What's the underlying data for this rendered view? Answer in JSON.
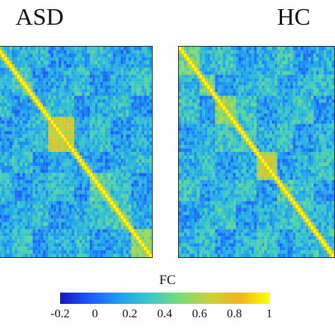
{
  "chart_data": [
    {
      "type": "heatmap",
      "title": "ASD",
      "matrix_size": 60,
      "value_range": [
        -0.2,
        1
      ],
      "diagonal_value": 1,
      "modules": [
        [
          0,
          6
        ],
        [
          6,
          14
        ],
        [
          14,
          20
        ],
        [
          20,
          30
        ],
        [
          30,
          36
        ],
        [
          36,
          44
        ],
        [
          44,
          52
        ],
        [
          52,
          60
        ]
      ],
      "module_means": [
        0.3,
        0.3,
        0.22,
        0.65,
        0.2,
        0.4,
        0.35,
        0.5
      ],
      "background_mean": 0.2
    },
    {
      "type": "heatmap",
      "title": "HC",
      "matrix_size": 60,
      "value_range": [
        -0.2,
        1
      ],
      "diagonal_value": 1,
      "modules": [
        [
          0,
          8
        ],
        [
          8,
          14
        ],
        [
          14,
          22
        ],
        [
          22,
          30
        ],
        [
          30,
          38
        ],
        [
          38,
          44
        ],
        [
          44,
          52
        ],
        [
          52,
          60
        ]
      ],
      "module_means": [
        0.45,
        0.4,
        0.5,
        0.3,
        0.6,
        0.35,
        0.3,
        0.3
      ],
      "background_mean": 0.22
    }
  ],
  "colorbar": {
    "label": "FC",
    "ticks": [
      "-0.2",
      "0",
      "0.2",
      "0.4",
      "0.6",
      "0.8",
      "1"
    ],
    "tick_values": [
      -0.2,
      0,
      0.2,
      0.4,
      0.6,
      0.8,
      1
    ],
    "colormap": [
      "#1414c8",
      "#1e5aff",
      "#1ea0f0",
      "#3cc8c8",
      "#78dc78",
      "#c8d23c",
      "#f0b41e",
      "#ffff00"
    ]
  }
}
